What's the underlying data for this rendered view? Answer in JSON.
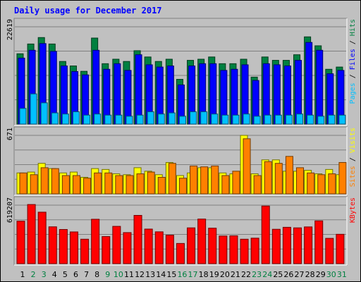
{
  "title": "Daily usage for December 2017",
  "colors": {
    "background": "#c0c0c0",
    "hits": "#008040",
    "files": "#0000ff",
    "pages": "#00c0ff",
    "visits": "#ffff00",
    "sites": "#ff8000",
    "kbytes": "#ff0000",
    "title_text": "#0000ff",
    "weekend_day": "#008040"
  },
  "chart_data": [
    {
      "type": "bar",
      "panel": "requests",
      "ymax_label": "22619",
      "ylim": [
        0,
        22619
      ],
      "grid": true,
      "legend": [
        "Pages",
        "Files",
        "Hits"
      ],
      "series": [
        {
          "name": "Hits",
          "color": "#008040",
          "values": [
            16350,
            18620,
            20120,
            18620,
            14560,
            13520,
            12270,
            20000,
            14040,
            15080,
            14560,
            17060,
            15600,
            14560,
            15080,
            10400,
            14820,
            15080,
            15600,
            14040,
            14040,
            15080,
            10920,
            15600,
            14820,
            14820,
            16120,
            20280,
            18200,
            12740,
            13260
          ]
        },
        {
          "name": "Files",
          "color": "#0000ff",
          "values": [
            15340,
            17160,
            18720,
            16900,
            13520,
            12220,
            11440,
            17160,
            12740,
            14040,
            12480,
            16120,
            13780,
            13260,
            13520,
            9100,
            13520,
            14040,
            14040,
            12480,
            12740,
            13780,
            10140,
            14040,
            13780,
            13520,
            14820,
            18980,
            17160,
            11700,
            12480
          ]
        },
        {
          "name": "Pages",
          "color": "#00c0ff",
          "values": [
            3640,
            7020,
            4940,
            2600,
            2340,
            2860,
            2080,
            2340,
            2080,
            2080,
            1820,
            2080,
            2860,
            2340,
            2600,
            1820,
            2860,
            2860,
            2340,
            2080,
            2080,
            2340,
            1820,
            2080,
            2080,
            2080,
            2340,
            2080,
            1820,
            2080,
            2080
          ]
        }
      ]
    },
    {
      "type": "bar",
      "panel": "visitors",
      "ymax_label": "671",
      "ylim": [
        0,
        671
      ],
      "grid": true,
      "legend": [
        "Sites",
        "Visits"
      ],
      "series": [
        {
          "name": "Visits",
          "color": "#ffff00",
          "values": [
            240,
            250,
            350,
            290,
            240,
            250,
            190,
            290,
            280,
            230,
            220,
            300,
            260,
            220,
            360,
            210,
            240,
            300,
            300,
            240,
            230,
            671,
            230,
            390,
            390,
            260,
            260,
            270,
            230,
            280,
            220
          ]
        },
        {
          "name": "Sites",
          "color": "#ff8000",
          "values": [
            240,
            220,
            300,
            290,
            210,
            210,
            180,
            240,
            240,
            210,
            210,
            230,
            250,
            190,
            350,
            180,
            320,
            310,
            320,
            210,
            260,
            632,
            210,
            370,
            350,
            430,
            300,
            240,
            220,
            230,
            360
          ]
        }
      ]
    },
    {
      "type": "bar",
      "panel": "kbytes",
      "ymax_label": "619207",
      "ylim": [
        0,
        619207
      ],
      "grid": true,
      "legend": [
        "KBytes"
      ],
      "series": [
        {
          "name": "KBytes",
          "color": "#ff0000",
          "values": [
            450000,
            626000,
            545000,
            390000,
            362000,
            336000,
            259000,
            470000,
            287000,
            395000,
            329000,
            511000,
            366000,
            337000,
            302000,
            214000,
            379000,
            472000,
            376000,
            293000,
            295000,
            259000,
            270000,
            610000,
            364000,
            385000,
            379000,
            389000,
            453000,
            268000,
            311000
          ]
        }
      ]
    }
  ],
  "days": {
    "labels": [
      "1",
      "2",
      "3",
      "4",
      "5",
      "6",
      "7",
      "8",
      "9",
      "10",
      "11",
      "12",
      "13",
      "14",
      "15",
      "16",
      "17",
      "18",
      "19",
      "20",
      "21",
      "22",
      "23",
      "24",
      "25",
      "26",
      "27",
      "28",
      "29",
      "30",
      "31"
    ],
    "weekend": [
      "2",
      "3",
      "9",
      "10",
      "16",
      "17",
      "23",
      "24",
      "30",
      "31"
    ]
  }
}
